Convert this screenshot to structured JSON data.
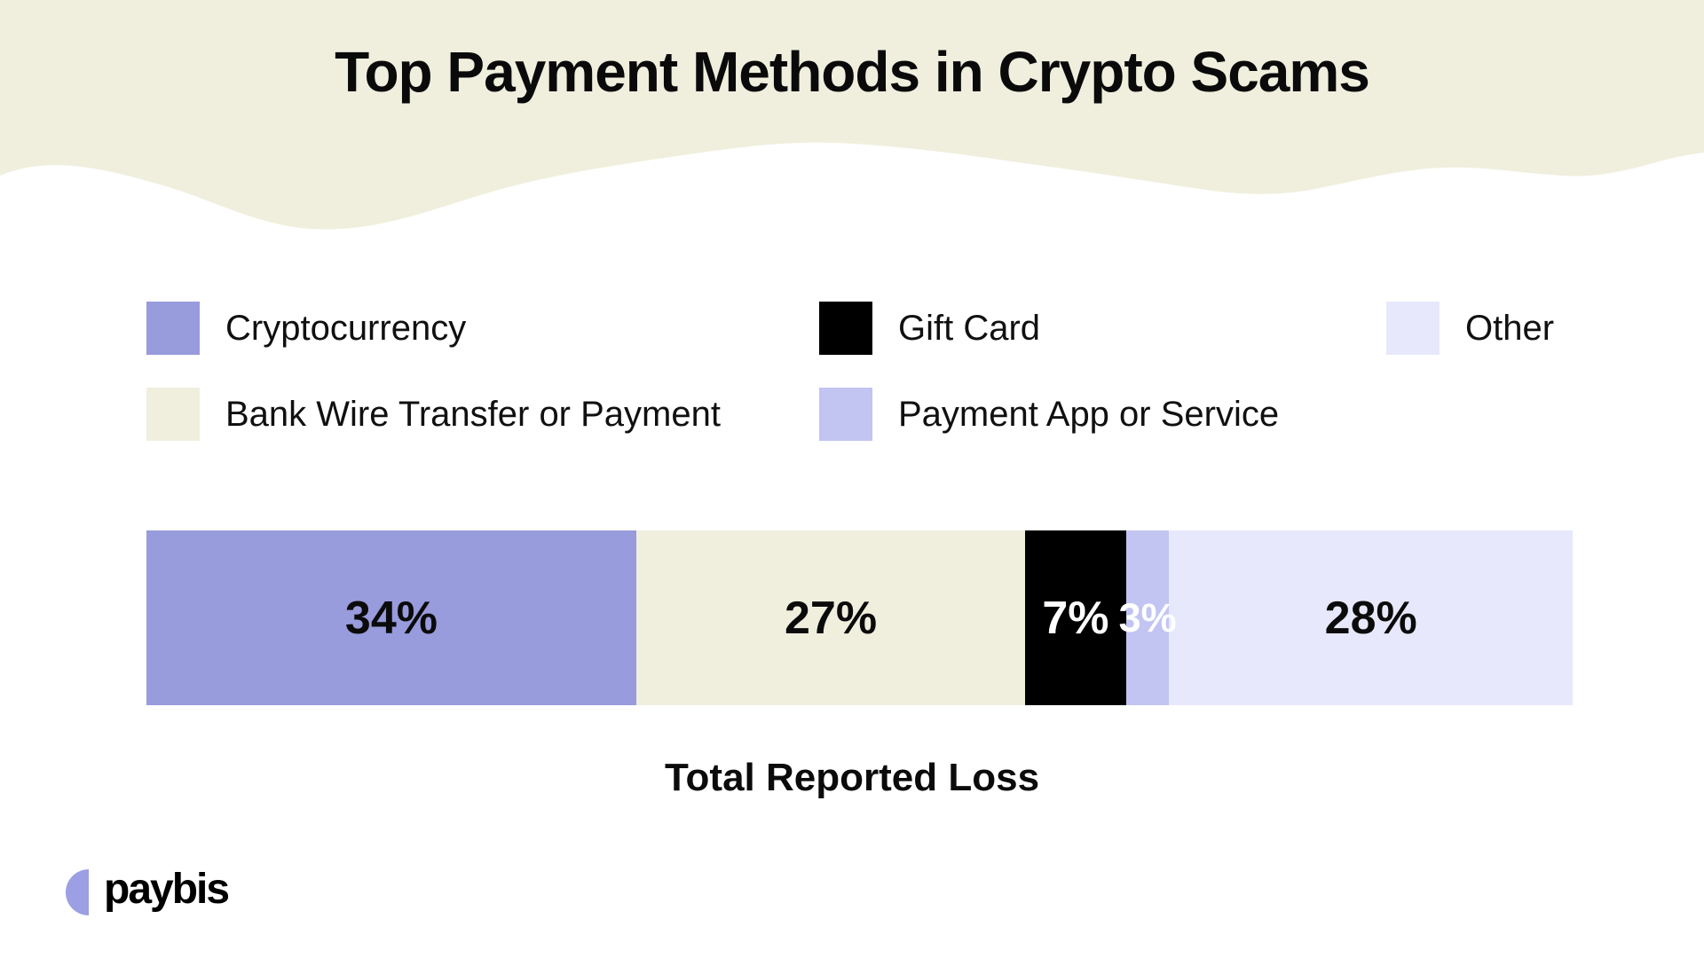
{
  "header": {
    "title": "Top Payment Methods in Crypto Scams",
    "background_color": "#F0EFDE"
  },
  "legend": {
    "items": [
      {
        "label": "Cryptocurrency",
        "color": "#989BDC"
      },
      {
        "label": "Bank Wire Transfer or Payment",
        "color": "#F0EFDE"
      },
      {
        "label": "Gift Card",
        "color": "#000000"
      },
      {
        "label": "Payment App or Service",
        "color": "#C2C5F1"
      },
      {
        "label": "Other",
        "color": "#E7E8FB"
      }
    ]
  },
  "chart_data": {
    "type": "bar",
    "variant": "horizontal-stacked",
    "title": "Top Payment Methods in Crypto Scams",
    "xlabel": "Total Reported Loss",
    "unit": "percent",
    "axes_shown": false,
    "legend_position": "top",
    "categories": [
      "Cryptocurrency",
      "Bank Wire Transfer or Payment",
      "Gift Card",
      "Payment App or Service",
      "Other"
    ],
    "values": [
      34,
      27,
      7,
      3,
      28
    ],
    "total": 99,
    "segments": [
      {
        "category": "Cryptocurrency",
        "value": 34,
        "label": "34%",
        "color": "#989BDC",
        "label_color": "#0B0B0B"
      },
      {
        "category": "Bank Wire Transfer or Payment",
        "value": 27,
        "label": "27%",
        "color": "#F0EFDE",
        "label_color": "#0B0B0B"
      },
      {
        "category": "Gift Card",
        "value": 7,
        "label": "7%",
        "color": "#000000",
        "label_color": "#FFFFFF"
      },
      {
        "category": "Payment App or Service",
        "value": 3,
        "label": "3%",
        "color": "#C2C5F1",
        "label_color": "#FFFFFF"
      },
      {
        "category": "Other",
        "value": 28,
        "label": "28%",
        "color": "#E7E8FB",
        "label_color": "#0B0B0B"
      }
    ]
  },
  "footer": {
    "brand": "paybis",
    "logo_mark_color": "#9C9FE3"
  }
}
